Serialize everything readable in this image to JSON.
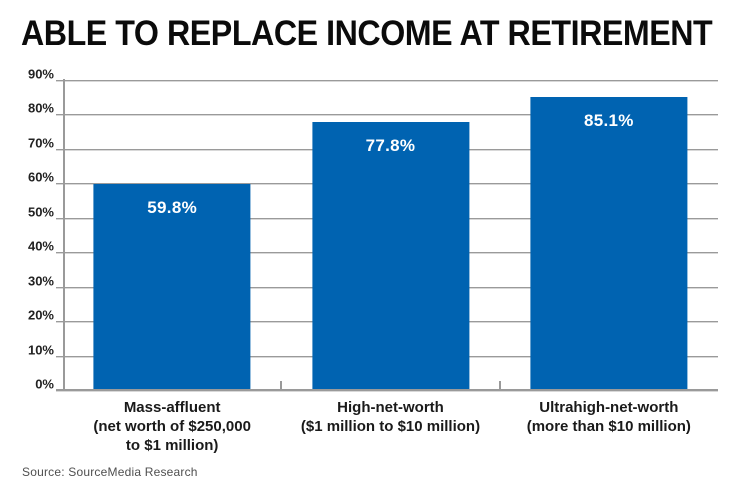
{
  "page": {
    "title": "ABLE TO REPLACE INCOME AT RETIREMENT",
    "source": "Source: SourceMedia Research"
  },
  "colors": {
    "bar": "#0063b1",
    "grid": "#9a9a9a",
    "grid_shadow": "#d8d8d8",
    "title_text": "#0b0b0b",
    "axis_text": "#222222",
    "value_label_text": "#ffffff",
    "source_text": "#4f4f4f",
    "background": "#ffffff"
  },
  "chart_data": {
    "type": "bar",
    "title": "ABLE TO REPLACE INCOME AT RETIREMENT",
    "categories": [
      "Mass-affluent (net worth of $250,000 to $1 million)",
      "High-net-worth ($1 million to $10 million)",
      "Ultrahigh-net-worth (more than $10 million)"
    ],
    "category_lines": [
      [
        "Mass-affluent",
        "(net worth of $250,000",
        "to $1 million)"
      ],
      [
        "High-net-worth",
        "($1 million to $10 million)"
      ],
      [
        "Ultrahigh-net-worth",
        "(more than $10 million)"
      ]
    ],
    "values": [
      59.8,
      77.8,
      85.1
    ],
    "value_labels": [
      "59.8%",
      "77.8%",
      "85.1%"
    ],
    "xlabel": "",
    "ylabel": "",
    "ylim": [
      0,
      90
    ],
    "ytick_step": 10,
    "yticks": [
      {
        "value": 0,
        "label": "0%"
      },
      {
        "value": 10,
        "label": "10%"
      },
      {
        "value": 20,
        "label": "20%"
      },
      {
        "value": 30,
        "label": "30%"
      },
      {
        "value": 40,
        "label": "40%"
      },
      {
        "value": 50,
        "label": "50%"
      },
      {
        "value": 60,
        "label": "60%"
      },
      {
        "value": 70,
        "label": "70%"
      },
      {
        "value": 80,
        "label": "80%"
      },
      {
        "value": 90,
        "label": "90%"
      }
    ],
    "grid": true,
    "legend": false,
    "bar_color": "#0063b1",
    "value_labels_position": "inside-top",
    "source": "Source: SourceMedia Research"
  }
}
